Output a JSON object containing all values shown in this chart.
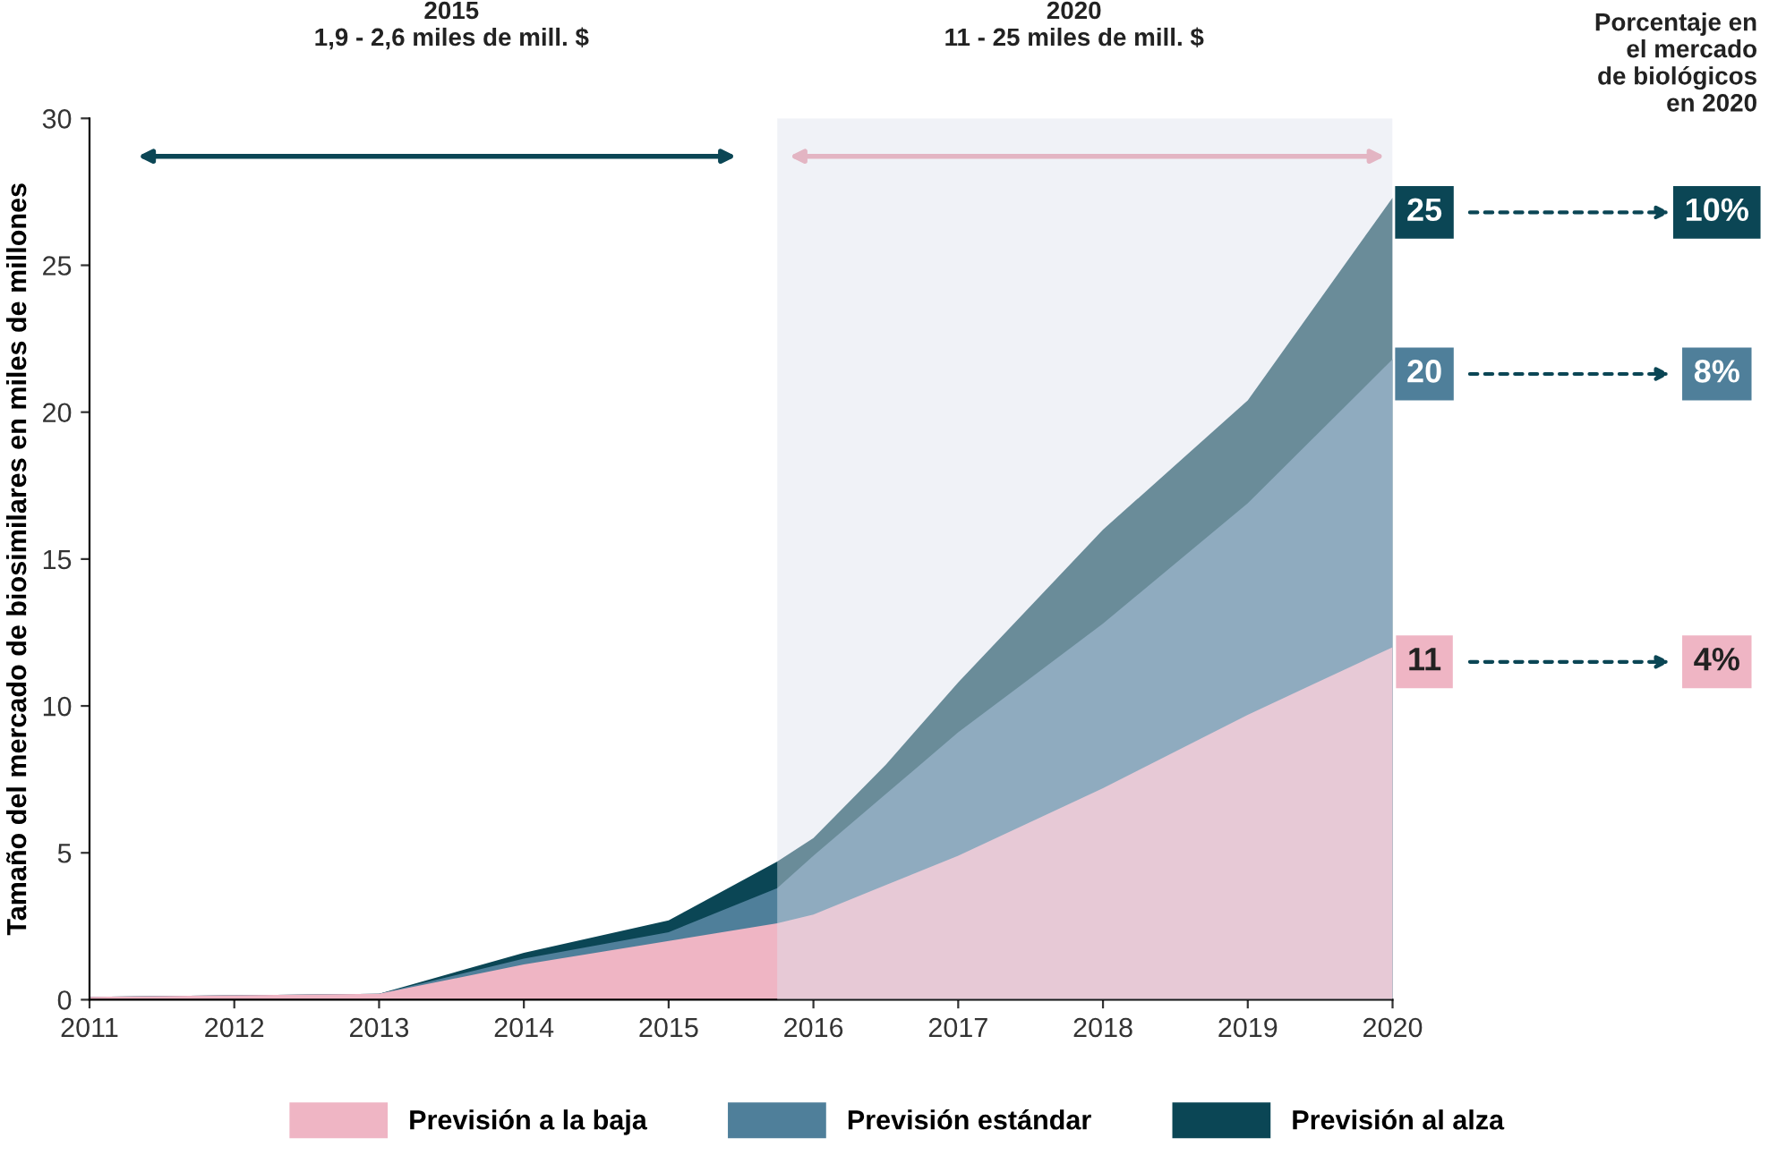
{
  "chart_data": {
    "type": "area",
    "ylabel": "Tamaño del mercado de biosimilares en miles de millones",
    "x": [
      2011,
      2012,
      2013,
      2014,
      2015,
      2015.75,
      2016,
      2016.5,
      2017,
      2018,
      2019,
      2020
    ],
    "series": [
      {
        "name": "Previsión al alza",
        "color": "#0b4655",
        "values": [
          0.1,
          0.15,
          0.2,
          1.6,
          2.7,
          4.7,
          5.5,
          8.0,
          10.8,
          16.0,
          20.4,
          27.3
        ]
      },
      {
        "name": "Previsión estándar",
        "color": "#4f7f9a",
        "values": [
          0.1,
          0.15,
          0.2,
          1.4,
          2.3,
          3.8,
          4.9,
          7.0,
          9.1,
          12.8,
          16.9,
          21.8
        ]
      },
      {
        "name": "Previsión a la baja",
        "color": "#efb5c4",
        "values": [
          0.1,
          0.15,
          0.2,
          1.2,
          2.0,
          2.6,
          2.9,
          3.9,
          4.9,
          7.2,
          9.7,
          12.0
        ]
      }
    ],
    "xlim": [
      2011,
      2020
    ],
    "xticks": [
      2011,
      2012,
      2013,
      2014,
      2015,
      2016,
      2017,
      2018,
      2019,
      2020
    ],
    "ylim": [
      0,
      30
    ],
    "yticks": [
      0,
      5,
      10,
      15,
      20,
      25,
      30
    ],
    "bands": [
      {
        "axis": "x",
        "from": 2015.75,
        "to": 2020,
        "color": "#dde3ee"
      }
    ],
    "grid": false,
    "legend": "bottom",
    "annotations": [
      "2015\n1,9 - 2,6 miles de mill. $",
      "2020\n11 - 25 miles de mill. $",
      "Porcentaje en\nel mercado\nde biológicos\nen 2020",
      "25",
      "20",
      "11",
      "10%",
      "8%",
      "4%"
    ]
  }
}
